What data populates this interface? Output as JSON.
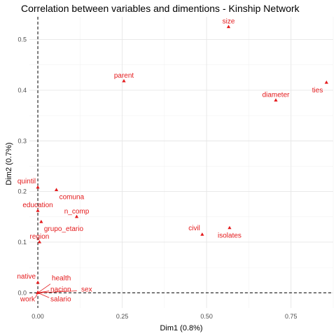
{
  "chart_data": {
    "type": "scatter",
    "title": "Correlation between variables and dimentions - Kinship Network",
    "xlabel": "Dim1 (0.8%)",
    "ylabel": "Dim2 (0.7%)",
    "xlim": [
      -0.025,
      0.875
    ],
    "ylim": [
      -0.03,
      0.545
    ],
    "x_ticks": [
      {
        "value": 0.0,
        "label": "0.00"
      },
      {
        "value": 0.25,
        "label": "0.25"
      },
      {
        "value": 0.5,
        "label": "0.50"
      },
      {
        "value": 0.75,
        "label": "0.75"
      }
    ],
    "y_ticks": [
      {
        "value": 0.0,
        "label": "0.0"
      },
      {
        "value": 0.1,
        "label": "0.1"
      },
      {
        "value": 0.2,
        "label": "0.2"
      },
      {
        "value": 0.3,
        "label": "0.3"
      },
      {
        "value": 0.4,
        "label": "0.4"
      },
      {
        "value": 0.5,
        "label": "0.5"
      }
    ],
    "grid": true,
    "reference_lines": {
      "x": 0,
      "y": 0,
      "style": "dashed"
    },
    "point_color": "#E41A1C",
    "points": [
      {
        "label": "size",
        "x": 0.565,
        "y": 0.525,
        "label_pos": "above"
      },
      {
        "label": "ties",
        "x": 0.855,
        "y": 0.415,
        "label_pos": "below-left"
      },
      {
        "label": "diameter",
        "x": 0.705,
        "y": 0.38,
        "label_pos": "above"
      },
      {
        "label": "parent",
        "x": 0.255,
        "y": 0.418,
        "label_pos": "above"
      },
      {
        "label": "quintil",
        "x": 0.0,
        "y": 0.208,
        "label_pos": "above-left"
      },
      {
        "label": "comuna",
        "x": 0.055,
        "y": 0.203,
        "label_pos": "below-right"
      },
      {
        "label": "education",
        "x": 0.0,
        "y": 0.162,
        "label_pos": "above"
      },
      {
        "label": "n_comp",
        "x": 0.115,
        "y": 0.15,
        "label_pos": "above"
      },
      {
        "label": "grupo_etario",
        "x": 0.01,
        "y": 0.14,
        "label_pos": "below-right"
      },
      {
        "label": "region",
        "x": 0.005,
        "y": 0.1,
        "label_pos": "above"
      },
      {
        "label": "civil",
        "x": 0.487,
        "y": 0.115,
        "label_pos": "above-left"
      },
      {
        "label": "isolates",
        "x": 0.568,
        "y": 0.128,
        "label_pos": "below"
      },
      {
        "label": "native",
        "x": 0.0,
        "y": 0.02,
        "label_pos": "above-left"
      },
      {
        "label": "health",
        "x": 0.0,
        "y": 0.0,
        "label_pos": "upper-right"
      },
      {
        "label": "nacion",
        "x": 0.0,
        "y": 0.0,
        "label_pos": "right"
      },
      {
        "label": "sex",
        "x": 0.0,
        "y": 0.0,
        "label_pos": "far-right"
      },
      {
        "label": "work",
        "x": 0.0,
        "y": 0.0,
        "label_pos": "below-left"
      },
      {
        "label": "salario",
        "x": 0.0,
        "y": 0.0,
        "label_pos": "below-right"
      }
    ]
  }
}
